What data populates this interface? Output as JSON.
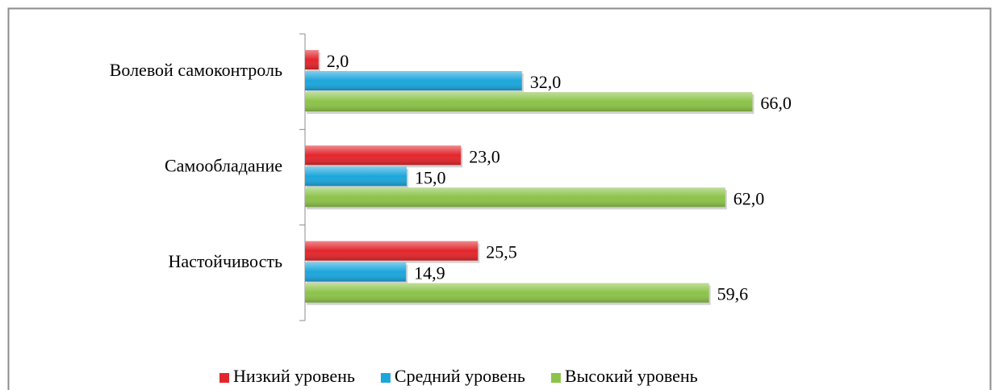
{
  "chart_data": {
    "type": "bar",
    "orientation": "horizontal",
    "categories": [
      "Волевой самоконтроль",
      "Самообладание",
      "Настойчивость"
    ],
    "series": [
      {
        "name": "Низкий уровень",
        "color": "#e3262c",
        "values": [
          2.0,
          23.0,
          25.5
        ],
        "value_labels": [
          "2,0",
          "23,0",
          "25,5"
        ]
      },
      {
        "name": "Средний уровень",
        "color": "#1ca6dc",
        "values": [
          32.0,
          15.0,
          14.9
        ],
        "value_labels": [
          "32,0",
          "15,0",
          "14,9"
        ]
      },
      {
        "name": "Высокий уровень",
        "color": "#8cc349",
        "values": [
          66.0,
          62.0,
          59.6
        ],
        "value_labels": [
          "66,0",
          "62,0",
          "59,6"
        ]
      }
    ],
    "xlim": [
      0,
      100
    ],
    "legend": "bottom"
  }
}
